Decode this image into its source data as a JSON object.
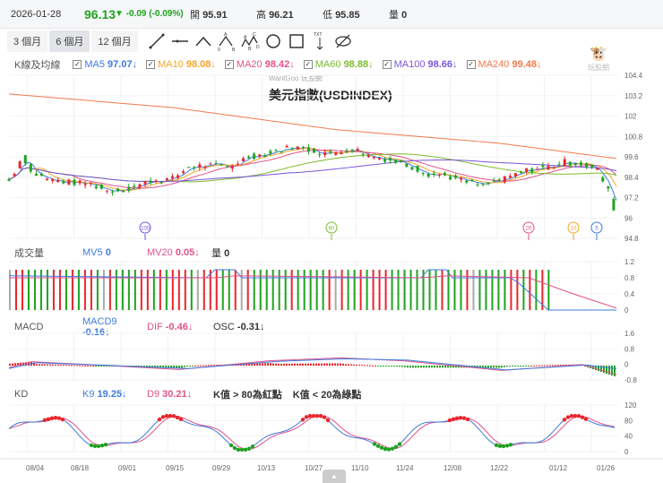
{
  "quote": {
    "date": "2026-01-28",
    "price": "96.13",
    "change": "▼ -0.09 (-0.09%)",
    "open_label": "開",
    "open": "95.91",
    "high_label": "高",
    "high": "96.21",
    "low_label": "低",
    "low": "95.85",
    "vol_label": "量",
    "vol": "0"
  },
  "periods": [
    "3 個月",
    "6 個月",
    "12 個月"
  ],
  "active_period": 1,
  "tools": [
    "line-tool-icon",
    "horizontal-line-icon",
    "wedge-icon",
    "abcd-pattern-icon",
    "abcde-pattern-icon",
    "circle-tool-icon",
    "rectangle-tool-icon",
    "text-arrow-icon",
    "hide-drawings-icon"
  ],
  "main": {
    "label": "K線及均線",
    "watermark": "WantGoo 玩股網",
    "title": "美元指數(USDINDEX)",
    "logo_text": "玩股網",
    "ma": [
      {
        "name": "MA5",
        "value": "97.07↓",
        "color": "#3d7be0"
      },
      {
        "name": "MA10",
        "value": "98.08↓",
        "color": "#f5a623"
      },
      {
        "name": "MA20",
        "value": "98.42↓",
        "color": "#e0528a"
      },
      {
        "name": "MA60",
        "value": "98.88↓",
        "color": "#7cbb2c"
      },
      {
        "name": "MA100",
        "value": "98.66↓",
        "color": "#7a56d8"
      },
      {
        "name": "MA240",
        "value": "99.48↓",
        "color": "#f07a4e"
      }
    ],
    "yticks": [
      "104.4",
      "103.2",
      "102",
      "100.8",
      "99.6",
      "98.4",
      "97.2",
      "96",
      "94.8"
    ],
    "markers": [
      {
        "label": "100",
        "color": "#7a56d8"
      },
      {
        "label": "60",
        "color": "#7cbb2c"
      },
      {
        "label": "20",
        "color": "#e0528a"
      },
      {
        "label": "10",
        "color": "#f5a623"
      },
      {
        "label": "5",
        "color": "#3d7be0"
      }
    ],
    "price_path": [
      [
        0,
        98.2
      ],
      [
        3,
        99.0
      ],
      [
        5,
        99.7
      ],
      [
        8,
        98.7
      ],
      [
        14,
        98.3
      ],
      [
        22,
        98.1
      ],
      [
        30,
        98.0
      ],
      [
        36,
        97.6
      ],
      [
        44,
        97.7
      ],
      [
        52,
        98.2
      ],
      [
        60,
        98.3
      ],
      [
        66,
        99.0
      ],
      [
        72,
        99.1
      ],
      [
        80,
        99.0
      ],
      [
        88,
        99.6
      ],
      [
        96,
        99.8
      ],
      [
        104,
        100.2
      ],
      [
        110,
        100.0
      ],
      [
        118,
        99.8
      ],
      [
        126,
        100.1
      ],
      [
        132,
        99.7
      ],
      [
        140,
        99.4
      ],
      [
        148,
        99.0
      ],
      [
        154,
        98.6
      ],
      [
        160,
        98.5
      ],
      [
        168,
        98.1
      ],
      [
        174,
        97.9
      ],
      [
        182,
        98.3
      ],
      [
        190,
        98.8
      ],
      [
        198,
        99.0
      ],
      [
        204,
        99.3
      ],
      [
        210,
        99.2
      ],
      [
        216,
        98.8
      ],
      [
        220,
        97.6
      ],
      [
        223,
        96.1
      ]
    ],
    "ma240_path": [
      [
        0,
        103.3
      ],
      [
        60,
        102.5
      ],
      [
        120,
        101.2
      ],
      [
        180,
        100.4
      ],
      [
        223,
        99.5
      ]
    ]
  },
  "volume": {
    "label": "成交量",
    "mv5_label": "MV5",
    "mv5": "0",
    "mv20_label": "MV20",
    "mv20": "0.05↓",
    "vol_label": "量",
    "vol": "0",
    "yticks": [
      "1.2",
      "0.8",
      "0.4",
      "0"
    ]
  },
  "macd": {
    "label": "MACD",
    "macd9_label": "MACD9",
    "macd9": "-0.16↓",
    "dif_label": "DIF",
    "dif": "-0.46↓",
    "osc_label": "OSC",
    "osc": "-0.31↓",
    "yticks": [
      "1.6",
      "0.8",
      "0",
      "-0.8"
    ]
  },
  "kd": {
    "label": "KD",
    "k_label": "K9",
    "k": "19.25↓",
    "d_label": "D9",
    "d": "30.21↓",
    "note1": "K值 > 80為紅點",
    "note2": "K值 < 20為綠點",
    "yticks": [
      "120",
      "80",
      "40",
      "0"
    ]
  },
  "dates": [
    "08/04",
    "08/18",
    "09/01",
    "09/15",
    "09/29",
    "10/13",
    "10/27",
    "11/10",
    "11/24",
    "12/08",
    "12/22",
    "01/12",
    "01/26"
  ],
  "colors": {
    "up": "#e8262b",
    "down": "#1fa31f",
    "flat": "#aaaaaa"
  }
}
